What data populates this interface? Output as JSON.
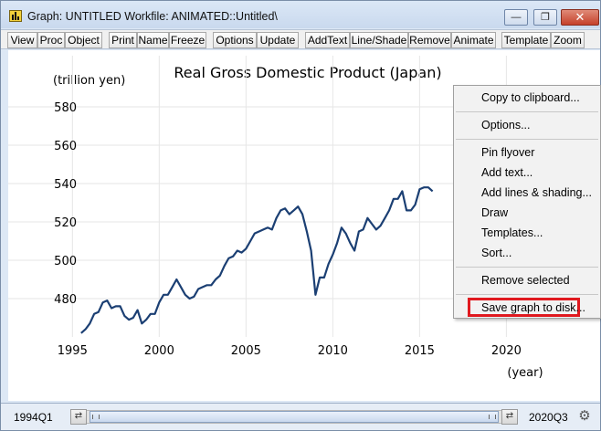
{
  "window": {
    "title": "Graph: UNTITLED   Workfile: ANIMATED::Untitled\\",
    "minimize_icon": "minimize-icon",
    "restore_icon": "restore-icon",
    "close_icon": "close-icon"
  },
  "toolbar": {
    "buttons": [
      "View",
      "Proc",
      "Object",
      "Print",
      "Name",
      "Freeze",
      "Options",
      "Update",
      "AddText",
      "Line/Shade",
      "Remove",
      "Animate",
      "Template",
      "Zoom"
    ]
  },
  "chart_data": {
    "type": "line",
    "title": "Real Gross Domestic Product (Japan)",
    "ylabel": "(trillion yen)",
    "xlabel": "(year)",
    "ylim": [
      460,
      580
    ],
    "yticks": [
      480,
      500,
      520,
      540,
      560,
      580
    ],
    "xticks": [
      1995,
      2000,
      2005,
      2010,
      2015,
      2020
    ],
    "grid": true,
    "series": [
      {
        "color": "#1b3f73",
        "x": [
          1995.5,
          1995.75,
          1996,
          1996.25,
          1996.5,
          1996.75,
          1997,
          1997.25,
          1997.5,
          1997.75,
          1998,
          1998.25,
          1998.5,
          1998.75,
          1999,
          1999.25,
          1999.5,
          1999.75,
          2000,
          2000.25,
          2000.5,
          2000.75,
          2001,
          2001.25,
          2001.5,
          2001.75,
          2002,
          2002.25,
          2002.5,
          2002.75,
          2003,
          2003.25,
          2003.5,
          2003.75,
          2004,
          2004.25,
          2004.5,
          2004.75,
          2005,
          2005.25,
          2005.5,
          2005.75,
          2006,
          2006.25,
          2006.5,
          2006.75,
          2007,
          2007.25,
          2007.5,
          2007.75,
          2008,
          2008.25,
          2008.5,
          2008.75,
          2009,
          2009.25,
          2009.5,
          2009.75,
          2010,
          2010.25,
          2010.5,
          2010.75,
          2011,
          2011.25,
          2011.5,
          2011.75,
          2012,
          2012.25,
          2012.5,
          2012.75,
          2013,
          2013.25,
          2013.5,
          2013.75,
          2014,
          2014.25,
          2014.5,
          2014.75,
          2015,
          2015.25,
          2015.5,
          2015.75
        ],
        "y": [
          462,
          464,
          467,
          472,
          473,
          478,
          479,
          475,
          476,
          476,
          471,
          469,
          470,
          474,
          467,
          469,
          472,
          472,
          478,
          482,
          482,
          486,
          490,
          486,
          482,
          480,
          481,
          485,
          486,
          487,
          487,
          490,
          492,
          497,
          501,
          502,
          505,
          504,
          506,
          510,
          514,
          515,
          516,
          517,
          516,
          522,
          526,
          527,
          524,
          526,
          528,
          524,
          515,
          505,
          482,
          491,
          491,
          498,
          503,
          509,
          517,
          514,
          509,
          505,
          515,
          516,
          522,
          519,
          516,
          518,
          522,
          526,
          532,
          532,
          536,
          526,
          526,
          529,
          537,
          538,
          538,
          536
        ]
      }
    ]
  },
  "context_menu": {
    "items": [
      "Copy to clipboard...",
      "Options...",
      "Pin flyover",
      "Add text...",
      "Add lines & shading...",
      "Draw",
      "Templates...",
      "Sort...",
      "Remove selected",
      "Save graph to disk..."
    ],
    "highlighted_color": "#e0191f"
  },
  "statusbar": {
    "range_start": "1994Q1",
    "range_end": "2020Q3",
    "settings_icon": "gear-icon"
  }
}
